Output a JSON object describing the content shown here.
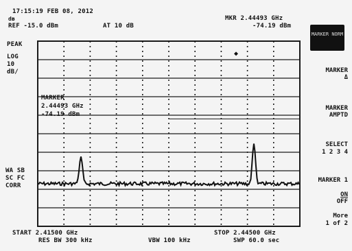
{
  "header": {
    "timestamp": "17:15:19 FEB 08, 2012",
    "db_symbol": "dʙ",
    "ref_level": "REF -15.0 dBm",
    "attenuation": "AT 10 dB",
    "marker_readout": "MKR 2.44493 GHz",
    "marker_level": "-74.19 dBm"
  },
  "left_annotations": {
    "peak": "PEAK",
    "log": "LOG",
    "scale": "10",
    "unit": "dB/",
    "wa_sb": "WA SB",
    "sc_fc": "SC FC",
    "corr": "CORR"
  },
  "marker_box": {
    "title": "MARKER",
    "freq": "2.44493 GHz",
    "level": "-74.19 dBm",
    "marker_symbol": "◆"
  },
  "footer": {
    "start": "START 2.41500 GHz",
    "res_bw": "RES BW 300 kHz",
    "vbw": "VBW 100 kHz",
    "stop": "STOP 2.44500 GHz",
    "sweep": "SWP 60.0 sec"
  },
  "softkeys": {
    "top_box": "MARKER\nNORM",
    "marker_delta": "MARKER\nΔ",
    "marker_ampl": "MARKER\nAMPTD",
    "select": "SELECT",
    "select_nums": "1 2 3 4",
    "marker_onoff_label": "MARKER 1",
    "marker_on": "ON",
    "marker_off": "OFF",
    "more": "More",
    "more_page": "1 of 2"
  },
  "colors": {
    "background": "#f4f4f4",
    "trace": "#111111",
    "grid": "#1a1a1a"
  }
}
